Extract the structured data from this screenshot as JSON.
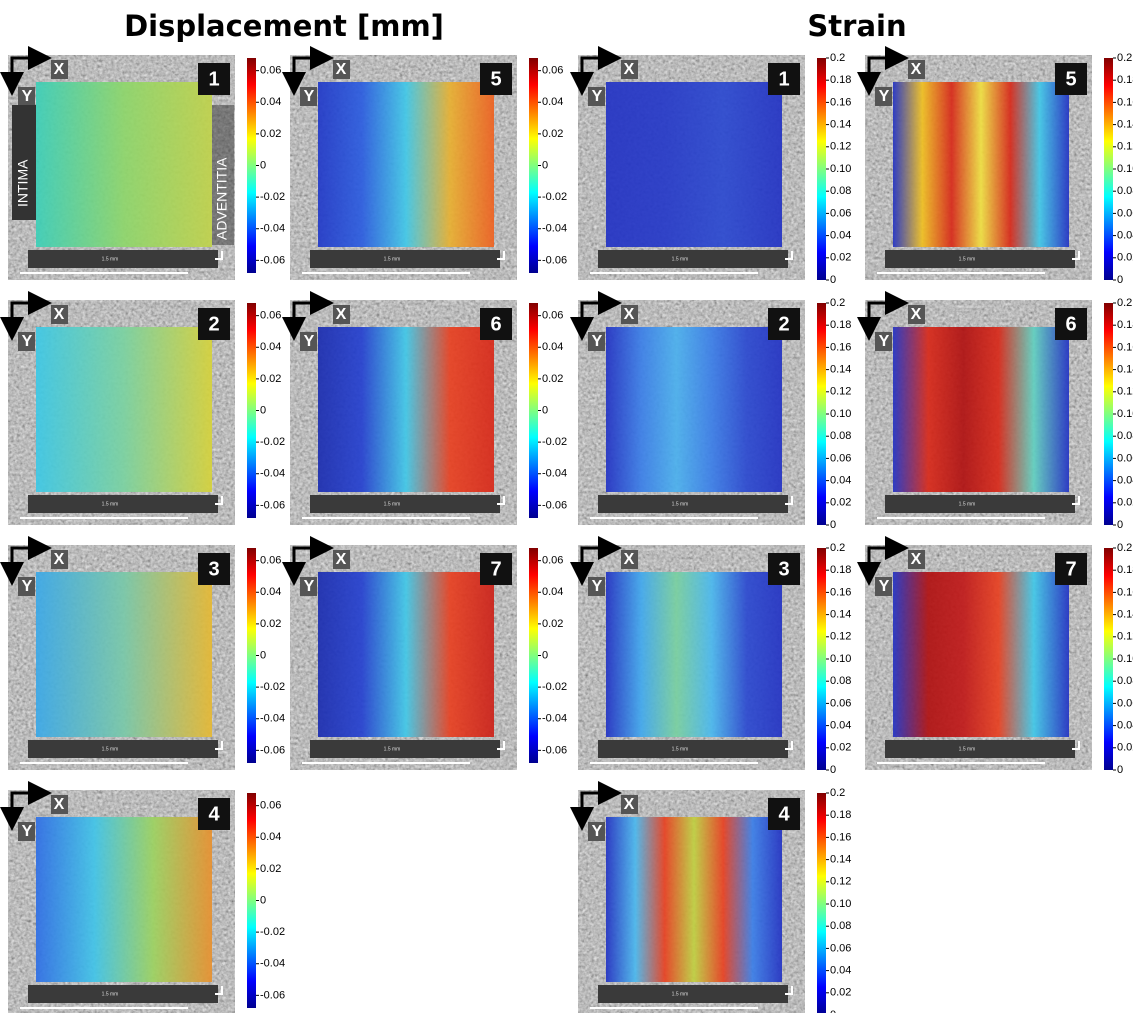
{
  "titles": {
    "displacement": "Displacement [mm]",
    "strain": "Strain"
  },
  "axis_labels": {
    "x": "X",
    "y": "Y"
  },
  "tissue_labels": {
    "intima": "INTIMA",
    "adventitia": "ADVENTITIA"
  },
  "scale_bar": "1.5 mm",
  "colorbars": {
    "displacement": {
      "lim": [
        -0.068,
        0.068
      ],
      "ticks": [
        0.06,
        0.04,
        0.02,
        0,
        -0.02,
        -0.04,
        -0.06
      ]
    },
    "strain": {
      "lim": [
        0,
        0.2
      ],
      "ticks": [
        0.2,
        0.18,
        0.16,
        0.14,
        0.12,
        {
          "value": 0.1,
          "label": "0.10"
        },
        0.08,
        0.06,
        0.04,
        0.02,
        0
      ]
    }
  },
  "panels": {
    "displacement": [
      "1",
      "2",
      "3",
      "4",
      "5",
      "6",
      "7"
    ],
    "strain": [
      "1",
      "2",
      "3",
      "4",
      "5",
      "6",
      "7"
    ]
  }
}
